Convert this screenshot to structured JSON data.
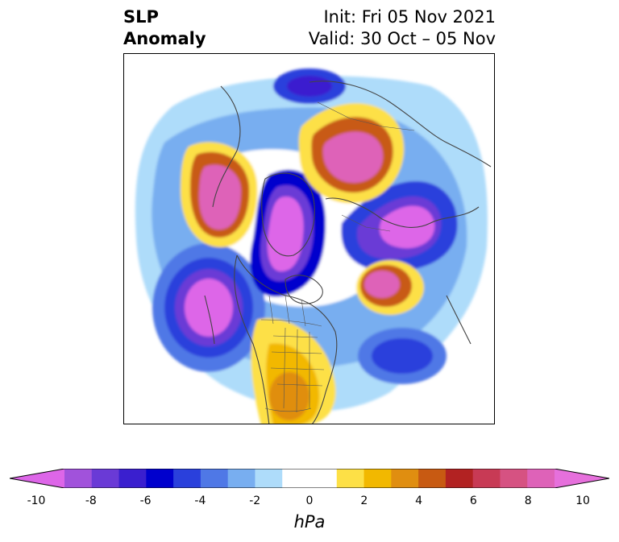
{
  "header": {
    "field_line1": "SLP",
    "field_line2": "Anomaly",
    "init_text": "Init: Fri 05 Nov 2021",
    "valid_text": "Valid: 30 Oct – 05 Nov"
  },
  "colorbar": {
    "unit_label": "hPa",
    "min": -10,
    "max": 10,
    "extend": "both",
    "tick_labels": [
      "-10",
      "-8",
      "-6",
      "-4",
      "-2",
      "0",
      "2",
      "4",
      "6",
      "8",
      "10"
    ],
    "colors": [
      "#dd66e8",
      "#a152db",
      "#6a3ad6",
      "#3a1fcf",
      "#0000cd",
      "#2a40dc",
      "#4f78e6",
      "#78aef0",
      "#aedcfa",
      "#ffffff",
      "#ffffff",
      "#fde046",
      "#f2b800",
      "#e08e10",
      "#c85a12",
      "#b22222",
      "#c83a55",
      "#d65282",
      "#de62b8",
      "#e670dc"
    ]
  },
  "map": {
    "projection": "polar stereographic (Northern Hemisphere)",
    "coastline_color": "#444444"
  }
}
